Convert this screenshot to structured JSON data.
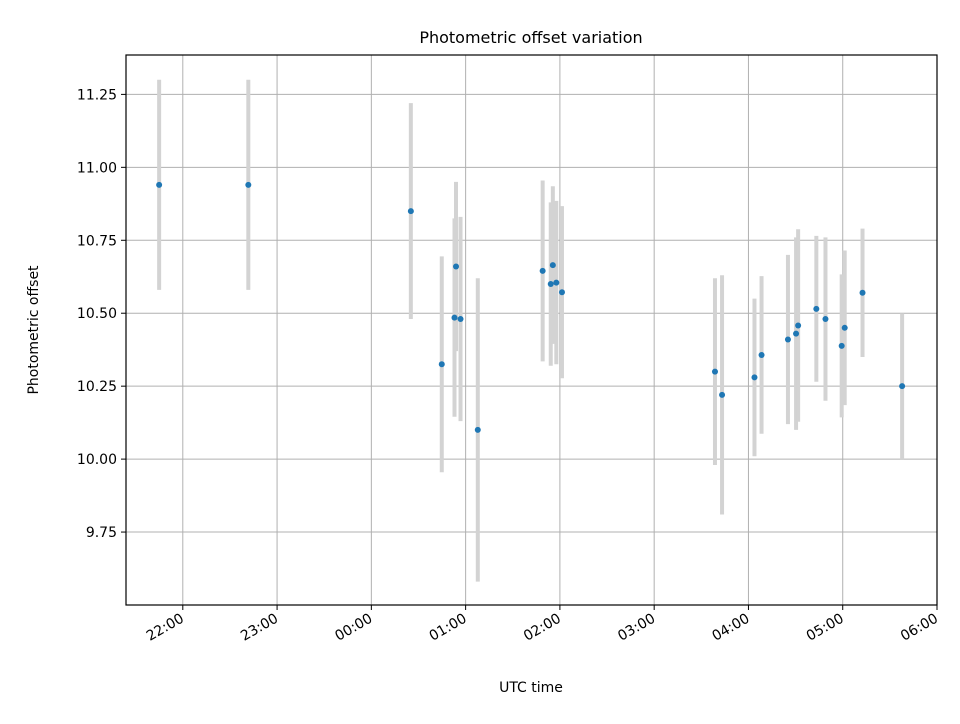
{
  "chart_data": {
    "type": "scatter",
    "title": "Photometric offset variation",
    "xlabel": "UTC time",
    "ylabel": "Photometric offset",
    "grid": true,
    "xlim_hours": [
      21.3975,
      30.0
    ],
    "ylim": [
      9.5,
      11.385
    ],
    "x_ticks": [
      {
        "value": 22,
        "label": "22:00"
      },
      {
        "value": 23,
        "label": "23:00"
      },
      {
        "value": 24,
        "label": "00:00"
      },
      {
        "value": 25,
        "label": "01:00"
      },
      {
        "value": 26,
        "label": "02:00"
      },
      {
        "value": 27,
        "label": "03:00"
      },
      {
        "value": 28,
        "label": "04:00"
      },
      {
        "value": 29,
        "label": "05:00"
      },
      {
        "value": 30,
        "label": "06:00"
      }
    ],
    "y_ticks": [
      {
        "value": 9.75,
        "label": "9.75"
      },
      {
        "value": 10.0,
        "label": "10.00"
      },
      {
        "value": 10.25,
        "label": "10.25"
      },
      {
        "value": 10.5,
        "label": "10.50"
      },
      {
        "value": 10.75,
        "label": "10.75"
      },
      {
        "value": 11.0,
        "label": "11.00"
      },
      {
        "value": 11.25,
        "label": "11.25"
      }
    ],
    "marker_color": "#1f77b4",
    "errorbar_color": "#d3d3d3",
    "series": [
      {
        "name": "offset",
        "points": [
          {
            "t": 21.749,
            "y": 10.94,
            "err": 0.36
          },
          {
            "t": 22.695,
            "y": 10.94,
            "err": 0.36
          },
          {
            "t": 24.419,
            "y": 10.85,
            "err": 0.37
          },
          {
            "t": 24.747,
            "y": 10.325,
            "err": 0.37
          },
          {
            "t": 24.882,
            "y": 10.485,
            "err": 0.34
          },
          {
            "t": 24.898,
            "y": 10.66,
            "err": 0.29
          },
          {
            "t": 24.946,
            "y": 10.48,
            "err": 0.35
          },
          {
            "t": 25.129,
            "y": 10.1,
            "err": 0.52
          },
          {
            "t": 25.817,
            "y": 10.645,
            "err": 0.31
          },
          {
            "t": 25.903,
            "y": 10.6,
            "err": 0.28
          },
          {
            "t": 25.925,
            "y": 10.665,
            "err": 0.27
          },
          {
            "t": 25.962,
            "y": 10.605,
            "err": 0.28
          },
          {
            "t": 26.022,
            "y": 10.572,
            "err": 0.295
          },
          {
            "t": 27.645,
            "y": 10.3,
            "err": 0.32
          },
          {
            "t": 27.72,
            "y": 10.22,
            "err": 0.41
          },
          {
            "t": 28.064,
            "y": 10.28,
            "err": 0.27
          },
          {
            "t": 28.139,
            "y": 10.357,
            "err": 0.27
          },
          {
            "t": 28.419,
            "y": 10.41,
            "err": 0.29
          },
          {
            "t": 28.505,
            "y": 10.43,
            "err": 0.33
          },
          {
            "t": 28.527,
            "y": 10.458,
            "err": 0.33
          },
          {
            "t": 28.72,
            "y": 10.515,
            "err": 0.25
          },
          {
            "t": 28.817,
            "y": 10.48,
            "err": 0.28
          },
          {
            "t": 28.989,
            "y": 10.388,
            "err": 0.245
          },
          {
            "t": 29.021,
            "y": 10.45,
            "err": 0.265
          },
          {
            "t": 29.21,
            "y": 10.57,
            "err": 0.22
          },
          {
            "t": 29.63,
            "y": 10.25,
            "err": 0.25
          }
        ]
      }
    ]
  }
}
